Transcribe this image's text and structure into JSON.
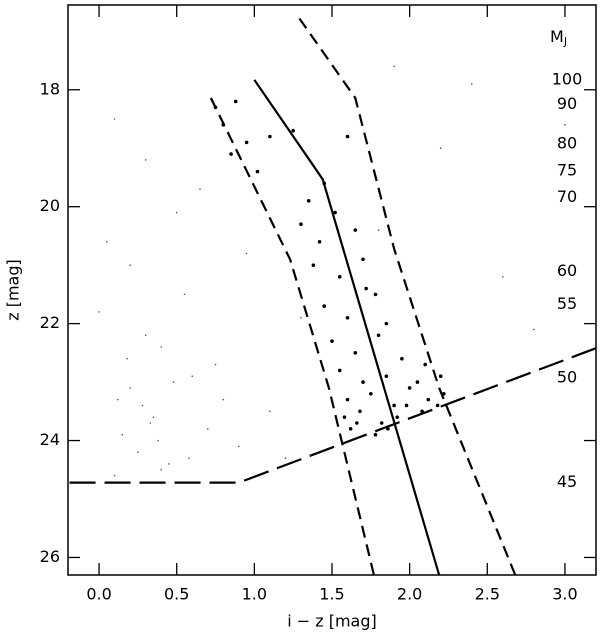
{
  "chart_data": {
    "type": "scatter",
    "x_label": "i − z [mag]",
    "y_label": "z [mag]",
    "xlim": [
      -0.2,
      3.2
    ],
    "ylim": [
      16.55,
      26.3
    ],
    "y_inverted": true,
    "xticks": [
      {
        "value": 0,
        "label": "0.0"
      },
      {
        "value": 0.5,
        "label": "0.5"
      },
      {
        "value": 1,
        "label": "1.0"
      },
      {
        "value": 1.5,
        "label": "1.5"
      },
      {
        "value": 2,
        "label": "2.0"
      },
      {
        "value": 2.5,
        "label": "2.5"
      },
      {
        "value": 3,
        "label": "3.0"
      }
    ],
    "yticks": [
      18,
      20,
      22,
      24,
      26
    ],
    "background": {
      "color": "#555",
      "x": [
        0.1,
        0.3,
        0.5,
        0.2,
        0.0,
        0.4,
        0.6,
        0.8,
        0.35,
        0.15,
        0.25,
        0.45,
        0.7,
        0.9,
        1.1,
        0.05,
        0.55,
        0.3,
        0.2,
        0.4,
        0.1,
        0.65,
        1.3,
        1.8,
        2.2,
        2.6,
        3.0,
        2.8,
        1.9,
        0.75,
        0.28,
        0.38,
        0.18,
        0.48,
        1.2,
        2.4,
        0.95,
        0.33,
        0.12,
        0.58
      ],
      "y": [
        18.5,
        19.2,
        20.1,
        21.0,
        21.8,
        22.4,
        22.9,
        23.3,
        23.6,
        23.9,
        24.2,
        24.4,
        23.8,
        24.1,
        23.5,
        20.6,
        21.5,
        22.2,
        23.1,
        24.5,
        24.6,
        19.7,
        21.9,
        20.4,
        19.0,
        21.2,
        18.6,
        22.1,
        17.6,
        22.7,
        23.4,
        24.0,
        22.6,
        23.0,
        24.3,
        17.9,
        20.8,
        23.7,
        23.3,
        24.3
      ]
    },
    "points": {
      "color": "#000",
      "x": [
        0.75,
        0.8,
        0.88,
        0.95,
        0.85,
        1.02,
        1.1,
        1.25,
        1.35,
        1.45,
        1.6,
        1.3,
        1.42,
        1.52,
        1.65,
        1.38,
        1.55,
        1.7,
        1.78,
        1.45,
        1.6,
        1.72,
        1.85,
        1.5,
        1.65,
        1.8,
        1.95,
        1.55,
        1.7,
        1.85,
        2.0,
        2.1,
        1.6,
        1.75,
        1.9,
        2.05,
        2.2,
        1.58,
        1.68,
        1.82,
        1.98,
        2.12,
        2.22,
        1.62,
        1.78,
        1.92,
        2.08,
        2.18,
        1.66,
        1.86
      ],
      "y": [
        18.3,
        18.6,
        18.2,
        18.9,
        19.1,
        19.4,
        18.8,
        18.7,
        19.9,
        19.6,
        18.8,
        20.3,
        20.6,
        20.1,
        20.4,
        21.0,
        21.2,
        20.9,
        21.5,
        21.7,
        21.9,
        21.4,
        22.0,
        22.3,
        22.5,
        22.2,
        22.6,
        22.8,
        23.0,
        22.9,
        23.1,
        22.7,
        23.3,
        23.2,
        23.4,
        23.0,
        22.9,
        23.6,
        23.5,
        23.7,
        23.4,
        23.3,
        23.2,
        23.8,
        23.9,
        23.6,
        23.5,
        23.4,
        23.7,
        23.8
      ]
    },
    "curves": [
      {
        "style": "solid",
        "x": [
          1.0,
          1.44,
          2.19
        ],
        "y": [
          17.83,
          19.53,
          26.3
        ]
      },
      {
        "style": "dashed",
        "x": [
          0.72,
          1.23,
          1.48,
          1.77
        ],
        "y": [
          18.14,
          20.9,
          23.1,
          26.3
        ]
      },
      {
        "style": "dashed",
        "x": [
          1.29,
          1.65,
          1.9,
          2.19,
          2.68
        ],
        "y": [
          16.78,
          18.14,
          20.72,
          23.1,
          26.3
        ]
      },
      {
        "style": "longdash",
        "x": [
          -0.19,
          0.9,
          3.2
        ],
        "y": [
          24.72,
          24.72,
          22.42
        ]
      }
    ],
    "mass_header": {
      "main": "M",
      "sub": "J"
    },
    "mass_labels": [
      {
        "text": "100",
        "z": 17.83
      },
      {
        "text": "90",
        "z": 18.25
      },
      {
        "text": "80",
        "z": 18.93
      },
      {
        "text": "75",
        "z": 19.39
      },
      {
        "text": "70",
        "z": 19.84
      },
      {
        "text": "60",
        "z": 21.11
      },
      {
        "text": "55",
        "z": 21.67
      },
      {
        "text": "50",
        "z": 22.93
      },
      {
        "text": "45",
        "z": 24.72
      }
    ]
  }
}
